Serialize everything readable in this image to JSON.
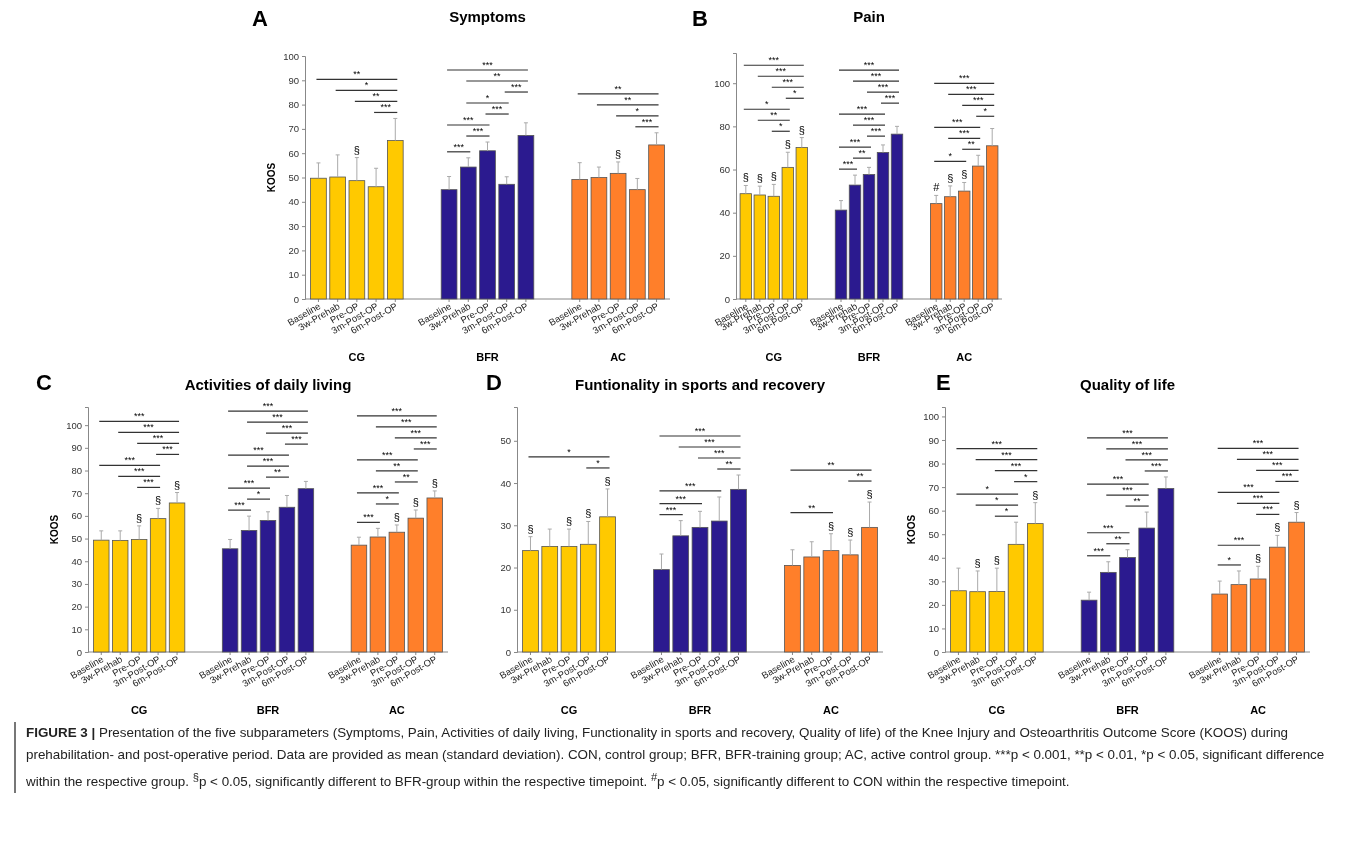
{
  "chart_data": [
    {
      "type": "bar",
      "title": "Symptoms",
      "ylabel": "KOOS",
      "categories": [
        "Baseline",
        "3w-Prehab",
        "Pre-OP",
        "3m-Post-OP",
        "6m-Post-OP",
        "Baseline",
        "3w-Prehab",
        "Pre-OP",
        "3m-Post-OP",
        "6m-Post-OP",
        "Baseline",
        "3w-Prehab",
        "Pre-OP",
        "3m-Post-OP",
        "6m-Post-OP"
      ],
      "series": [
        {
          "color": "#ffc900",
          "values": [
            49.7,
            50.2,
            48.7,
            46.2,
            65.2,
            null,
            null,
            null,
            null,
            null,
            null,
            null,
            null,
            null,
            null
          ],
          "errors": [
            6.3,
            9.1,
            9.5,
            7.6,
            9.1,
            null,
            null,
            null,
            null,
            null,
            null,
            null,
            null,
            null,
            null
          ]
        },
        {
          "color": "#2b1a8f",
          "values": [
            null,
            null,
            null,
            null,
            null,
            45,
            54.3,
            61,
            47.2,
            67.3,
            null,
            null,
            null,
            null,
            null
          ],
          "errors": [
            null,
            null,
            null,
            null,
            null,
            5.4,
            3.8,
            3.6,
            3.1,
            5.2,
            null,
            null,
            null,
            null,
            null
          ]
        },
        {
          "color": "#ff7f2a",
          "values": [
            null,
            null,
            null,
            null,
            null,
            null,
            null,
            null,
            null,
            null,
            49.2,
            50,
            51.7,
            45,
            63.4
          ],
          "errors": [
            null,
            null,
            null,
            null,
            null,
            null,
            null,
            null,
            null,
            null,
            6.9,
            4.3,
            4.7,
            4.6,
            5
          ]
        }
      ],
      "ylim": [
        0,
        100
      ],
      "yticks": [
        0,
        10,
        20,
        30,
        40,
        50,
        60,
        70,
        80,
        90,
        100
      ],
      "annotations": [
        "A",
        "CG",
        "BFR",
        "AC",
        "**",
        "*",
        "**",
        "***",
        "§",
        "***",
        "**",
        "***",
        "*",
        "***",
        "***",
        "***",
        "***",
        "**",
        "**",
        "*",
        "***",
        "§"
      ]
    },
    {
      "type": "bar",
      "title": "Pain",
      "categories": [
        "Baseline",
        "3w-Prehab",
        "Pre-OP",
        "3m-Post-OP",
        "6m-Post-OP",
        "Baseline",
        "3w-Prehab",
        "Pre-OP",
        "3m-Post-OP",
        "6m-Post-OP",
        "Baseline",
        "3w-Prehab",
        "Pre-OP",
        "3m-Post-OP",
        "6m-Post-OP"
      ],
      "series": [
        {
          "color": "#ffc900",
          "values": [
            48.8,
            48.2,
            47.6,
            61,
            70.2,
            null,
            null,
            null,
            null,
            null,
            null,
            null,
            null,
            null,
            null
          ],
          "errors": [
            3.8,
            4.1,
            5.5,
            7,
            4.6,
            null,
            null,
            null,
            null,
            null,
            null,
            null,
            null,
            null,
            null
          ]
        },
        {
          "color": "#2b1a8f",
          "values": [
            null,
            null,
            null,
            null,
            null,
            41.2,
            52.8,
            57.7,
            67.9,
            76.4,
            null,
            null,
            null,
            null,
            null
          ],
          "errors": [
            null,
            null,
            null,
            null,
            null,
            4.4,
            4.6,
            3.3,
            3.5,
            3.6,
            null,
            null,
            null,
            null,
            null
          ]
        },
        {
          "color": "#ff7f2a",
          "values": [
            null,
            null,
            null,
            null,
            null,
            null,
            null,
            null,
            null,
            null,
            44.2,
            47.4,
            50,
            61.6,
            71
          ],
          "errors": [
            null,
            null,
            null,
            null,
            null,
            null,
            null,
            null,
            null,
            null,
            3.8,
            5,
            4,
            5,
            8
          ]
        }
      ],
      "ylim": [
        0,
        114
      ],
      "yticks": [
        0,
        20,
        40,
        60,
        80,
        100
      ],
      "annotations": [
        "B",
        "CG",
        "BFR",
        "AC",
        "***",
        "***",
        "***",
        "*",
        "*",
        "**",
        "*",
        "§",
        "§",
        "§",
        "§",
        "§",
        "***",
        "***",
        "***",
        "***",
        "***",
        "***",
        "***",
        "***",
        "**",
        "***",
        "***",
        "***",
        "***",
        "*",
        "***",
        "***",
        "**",
        "*",
        "#",
        "§",
        "§"
      ]
    },
    {
      "type": "bar",
      "title": "Activities of daily living",
      "ylabel": "KOOS",
      "categories": [
        "Baseline",
        "3w-Prehab",
        "Pre-OP",
        "3m-Post-OP",
        "6m-Post-OP",
        "Baseline",
        "3w-Prehab",
        "Pre-OP",
        "3m-Post-OP",
        "6m-Post-OP",
        "Baseline",
        "3w-Prehab",
        "Pre-OP",
        "3m-Post-OP",
        "6m-Post-OP"
      ],
      "series": [
        {
          "color": "#ffc900",
          "values": [
            49.3,
            49.2,
            49.6,
            58.8,
            65.7,
            null,
            null,
            null,
            null,
            null,
            null,
            null,
            null,
            null,
            null
          ],
          "errors": [
            4.1,
            4.2,
            6,
            4.5,
            4.6,
            null,
            null,
            null,
            null,
            null,
            null,
            null,
            null,
            null,
            null
          ]
        },
        {
          "color": "#2b1a8f",
          "values": [
            null,
            null,
            null,
            null,
            null,
            45.5,
            53.6,
            58,
            63.8,
            72,
            null,
            null,
            null,
            null,
            null
          ],
          "errors": [
            null,
            null,
            null,
            null,
            null,
            4.1,
            6.3,
            3.8,
            5.2,
            3.2,
            null,
            null,
            null,
            null,
            null
          ]
        },
        {
          "color": "#ff7f2a",
          "values": [
            null,
            null,
            null,
            null,
            null,
            null,
            null,
            null,
            null,
            null,
            47.1,
            50.7,
            52.8,
            59,
            67.9
          ],
          "errors": [
            null,
            null,
            null,
            null,
            null,
            null,
            null,
            null,
            null,
            null,
            3.5,
            3.8,
            3.2,
            3.6,
            3.1
          ]
        }
      ],
      "ylim": [
        0,
        108
      ],
      "yticks": [
        0,
        10,
        20,
        30,
        40,
        50,
        60,
        70,
        80,
        90,
        100
      ],
      "annotations": [
        "C",
        "CG",
        "BFR",
        "AC",
        "***",
        "***",
        "***",
        "***",
        "***",
        "***",
        "***",
        "§",
        "§",
        "§",
        "***",
        "***",
        "***",
        "***",
        "***",
        "***",
        "**",
        "***",
        "*",
        "***",
        "***",
        "***",
        "***",
        "***",
        "***",
        "**",
        "**",
        "***",
        "*",
        "***",
        "§",
        "§",
        "§"
      ]
    },
    {
      "type": "bar",
      "title": "Funtionality in sports and recovery",
      "categories": [
        "Baseline",
        "3w-Prehab",
        "Pre-OP",
        "3m-Post-OP",
        "6m-Post-OP",
        "Baseline",
        "3w-Prehab",
        "Pre-OP",
        "3m-Post-OP",
        "6m-Post-OP",
        "Baseline",
        "3w-Prehab",
        "Pre-OP",
        "3m-Post-OP",
        "6m-Post-OP"
      ],
      "series": [
        {
          "color": "#ffc900",
          "values": [
            24,
            25,
            25,
            25.5,
            32,
            null,
            null,
            null,
            null,
            null,
            null,
            null,
            null,
            null,
            null
          ],
          "errors": [
            3.3,
            4.1,
            4.1,
            5.4,
            6.6,
            null,
            null,
            null,
            null,
            null,
            null,
            null,
            null,
            null,
            null
          ]
        },
        {
          "color": "#2b1a8f",
          "values": [
            null,
            null,
            null,
            null,
            null,
            19.5,
            27.5,
            29.5,
            31,
            38.5,
            null,
            null,
            null,
            null,
            null
          ],
          "errors": [
            null,
            null,
            null,
            null,
            null,
            3.7,
            3.6,
            3.8,
            5.7,
            3.4,
            null,
            null,
            null,
            null,
            null
          ]
        },
        {
          "color": "#ff7f2a",
          "values": [
            null,
            null,
            null,
            null,
            null,
            null,
            null,
            null,
            null,
            null,
            20.5,
            22.5,
            24,
            23,
            29.5
          ],
          "errors": [
            null,
            null,
            null,
            null,
            null,
            null,
            null,
            null,
            null,
            null,
            3.7,
            3.6,
            4,
            3.5,
            6
          ]
        }
      ],
      "ylim": [
        0,
        58
      ],
      "yticks": [
        0,
        10,
        20,
        30,
        40,
        50
      ],
      "annotations": [
        "D",
        "CG",
        "BFR",
        "AC",
        "*",
        "*",
        "§",
        "§",
        "§",
        "§",
        "***",
        "***",
        "***",
        "**",
        "***",
        "***",
        "***",
        "**",
        "**",
        "**",
        "§",
        "§",
        "§"
      ]
    },
    {
      "type": "bar",
      "title": "Quality of life",
      "ylabel": "KOOS",
      "categories": [
        "Baseline",
        "3w-Prehab",
        "Pre-OP",
        "3m-Post-OP",
        "6m-Post-OP",
        "Baseline",
        "3w-Prehab",
        "Pre-OP",
        "3m-Post-OP",
        "6m-Post-OP",
        "Baseline",
        "3w-Prehab",
        "Pre-OP",
        "3m-Post-OP",
        "6m-Post-OP"
      ],
      "series": [
        {
          "color": "#ffc900",
          "values": [
            26,
            25.6,
            25.7,
            45.7,
            54.5,
            null,
            null,
            null,
            null,
            null,
            null,
            null,
            null,
            null,
            null
          ],
          "errors": [
            9.6,
            8.8,
            9.9,
            9.4,
            8.9,
            null,
            null,
            null,
            null,
            null,
            null,
            null,
            null,
            null,
            null
          ]
        },
        {
          "color": "#2b1a8f",
          "values": [
            null,
            null,
            null,
            null,
            null,
            22,
            33.8,
            40.1,
            52.6,
            69.4,
            null,
            null,
            null,
            null,
            null
          ],
          "errors": [
            null,
            null,
            null,
            null,
            null,
            3.4,
            4.5,
            3.3,
            6.8,
            4.9,
            null,
            null,
            null,
            null,
            null
          ]
        },
        {
          "color": "#ff7f2a",
          "values": [
            null,
            null,
            null,
            null,
            null,
            null,
            null,
            null,
            null,
            null,
            24.6,
            28.6,
            31,
            44.5,
            55.1
          ],
          "errors": [
            null,
            null,
            null,
            null,
            null,
            null,
            null,
            null,
            null,
            null,
            5.5,
            5.8,
            5.4,
            5,
            4.1
          ]
        }
      ],
      "ylim": [
        0,
        104
      ],
      "yticks": [
        0,
        10,
        20,
        30,
        40,
        50,
        60,
        70,
        80,
        90,
        100
      ],
      "annotations": [
        "E",
        "CG",
        "BFR",
        "AC",
        "***",
        "***",
        "***",
        "*",
        "*",
        "*",
        "*",
        "§",
        "§",
        "§",
        "***",
        "***",
        "***",
        "***",
        "***",
        "***",
        "**",
        "***",
        "**",
        "***",
        "***",
        "***",
        "***",
        "***",
        "***",
        "***",
        "***",
        "***",
        "*",
        "§",
        "§",
        "§",
        "FIGURE 3 | Presentation of the five subparameters (Symptoms, Pain, Activities of daily living, Functionality in sports and recovery, Quality of life) of the Knee Injury and Osteoarthritis Outcome Score (KOOS) during prehabilitation- and post-operative period. Data are provided as mean (standard deviation). CON, control group; BFR, BFR-training group; AC, active control group. ***p < 0.001, **p < 0.01, *p < 0.05, significant difference within the respective group. $^{§}$p < 0.05, significantly different to BFR-group within the respective timepoint. $^{#}$p < 0.05, significantly different to CON within the respective timepoint."
      ]
    }
  ]
}
